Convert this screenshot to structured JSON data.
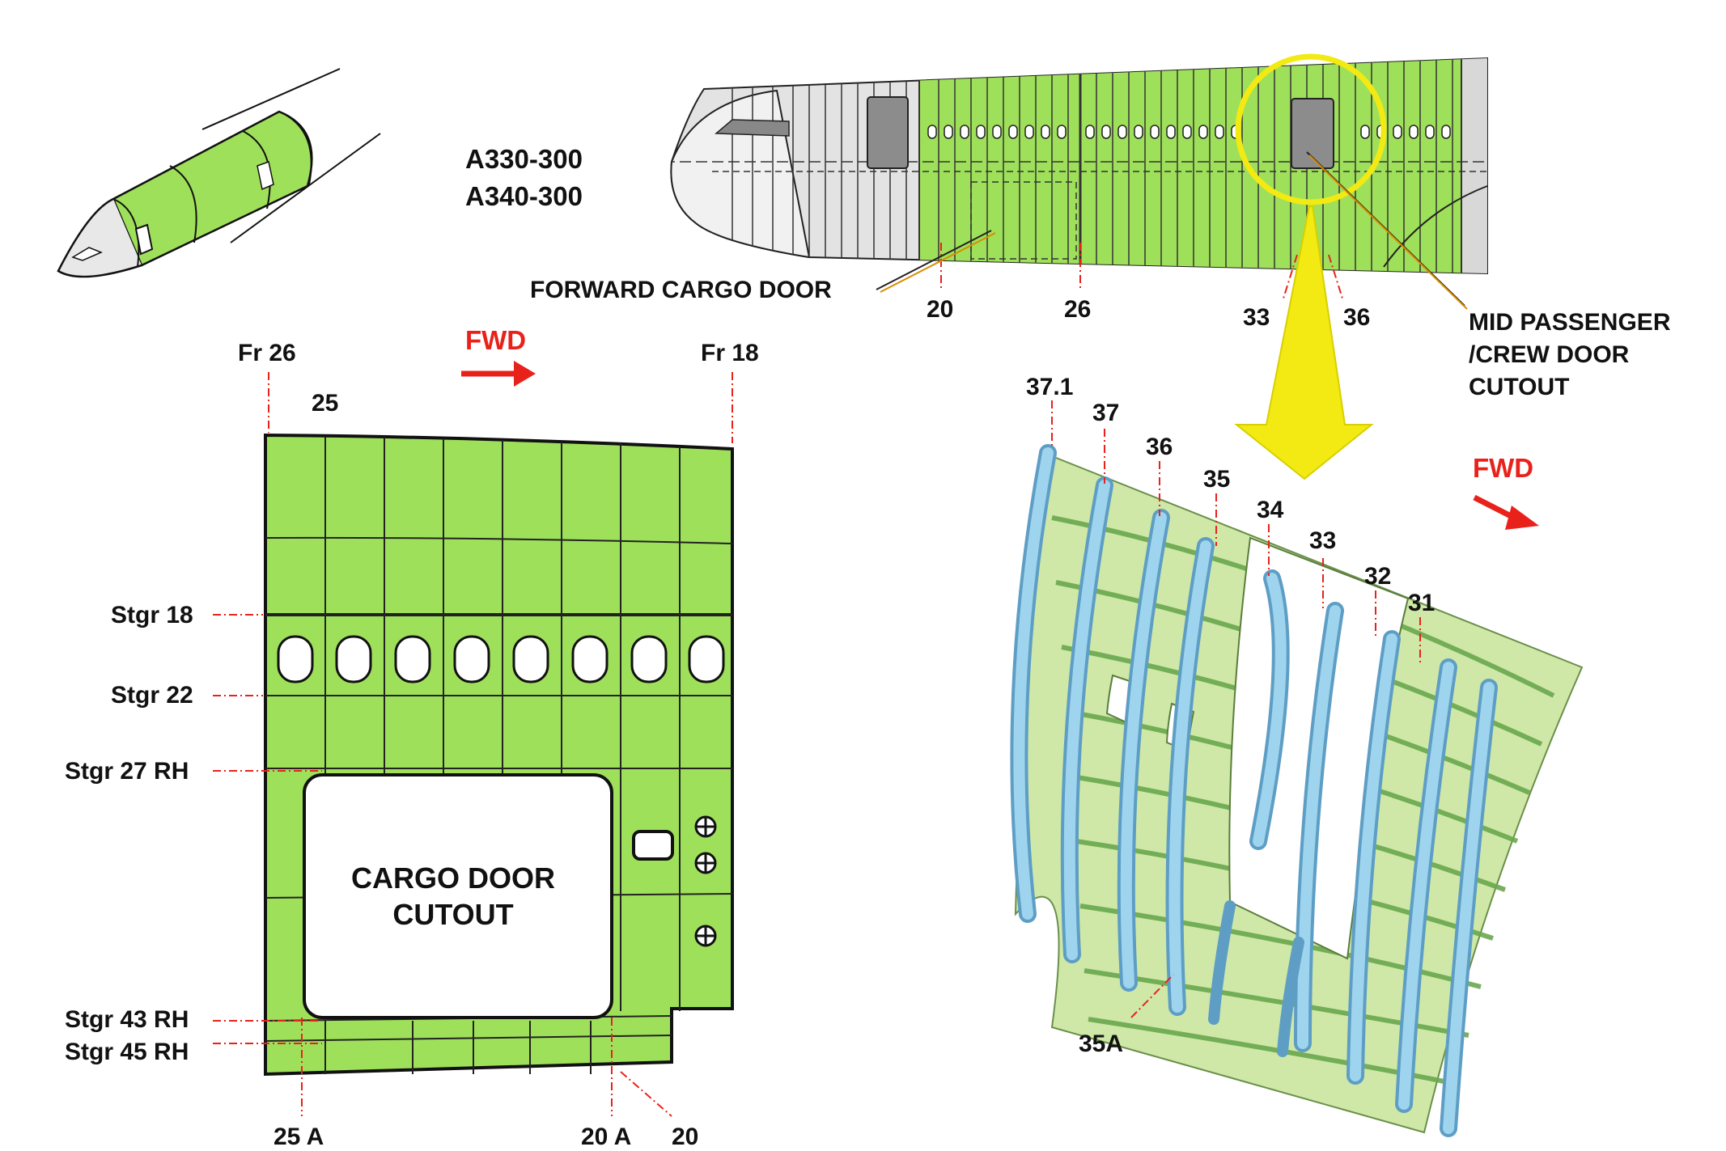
{
  "colors": {
    "skin_green": "#9fe05a",
    "frame_blue": "#8ec9e8",
    "highlight_yellow": "#f2ea12",
    "red_reference": "#e8221b",
    "grey_structure": "#e3e3e3",
    "leader_orange": "#d98c00"
  },
  "aircraft_models": [
    "A330-300",
    "A340-300"
  ],
  "fuselage_view": {
    "forward_cargo_door_label": "FORWARD CARGO DOOR",
    "mid_door_label": [
      "MID PASSENGER",
      "/CREW DOOR",
      "CUTOUT"
    ],
    "frame_numbers": [
      "20",
      "26",
      "33",
      "36"
    ]
  },
  "panel_view": {
    "fwd_label": "FWD",
    "top_frames": {
      "left": "Fr 26",
      "right": "Fr 18",
      "inner": "25"
    },
    "stringers": [
      "Stgr 18",
      "Stgr 22",
      "Stgr 27 RH",
      "Stgr 43 RH",
      "Stgr 45 RH"
    ],
    "bottom_frames": [
      "25 A",
      "20 A",
      "20"
    ],
    "cutout_label": [
      "CARGO DOOR",
      "CUTOUT"
    ]
  },
  "frame_view": {
    "fwd_label": "FWD",
    "frame_numbers": [
      "37.1",
      "37",
      "36",
      "35",
      "34",
      "33",
      "32",
      "31"
    ],
    "intermediate_frame": "35A"
  }
}
